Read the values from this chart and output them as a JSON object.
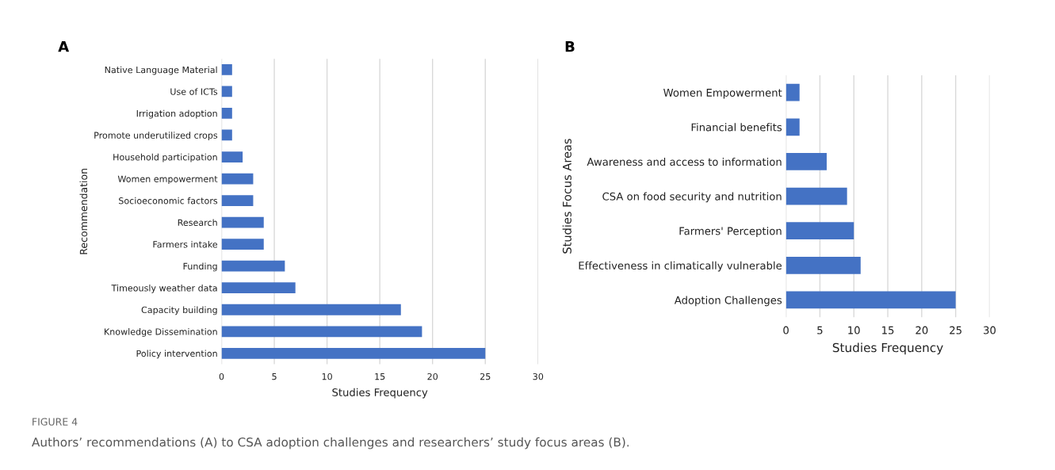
{
  "chart_data": [
    {
      "type": "bar",
      "orientation": "horizontal",
      "title": "A",
      "xlabel": "Studies Frequency",
      "ylabel": "Recommendation",
      "categories": [
        "Native Language Material",
        "Use of ICTs",
        "Irrigation adoption",
        "Promote underutilized crops",
        "Household participation",
        "Women empowerment",
        "Socioeconomic factors",
        "Research",
        "Farmers intake",
        "Funding",
        "Timeously weather data",
        "Capacity building",
        "Knowledge Dissemination",
        "Policy intervention"
      ],
      "values": [
        1,
        1,
        1,
        1,
        2,
        3,
        3,
        4,
        4,
        6,
        7,
        17,
        19,
        25
      ],
      "color": "#4472c4",
      "xlim": [
        0,
        30
      ],
      "xticks": [
        0,
        5,
        10,
        15,
        20,
        25,
        30
      ],
      "grid": "x",
      "annotations": [
        "FIGURE 4",
        "Authors’ recommendations (A) to CSA adoption challenges and researchers’ study focus areas (B)."
      ]
    },
    {
      "type": "bar",
      "orientation": "horizontal",
      "title": "B",
      "xlabel": "Studies Frequency",
      "ylabel": "Studies Focus Areas",
      "categories": [
        "Women Empowerment",
        "Financial benefits",
        "Awareness and access to information",
        "CSA on food security and nutrition",
        "Farmers' Perception",
        "Effectiveness in climatically vulnerable",
        "Adoption Challenges"
      ],
      "values": [
        2,
        2,
        6,
        9,
        10,
        11,
        25
      ],
      "color": "#4472c4",
      "xlim": [
        0,
        30
      ],
      "xticks": [
        0,
        5,
        10,
        15,
        20,
        25,
        30
      ],
      "grid": "x"
    }
  ]
}
